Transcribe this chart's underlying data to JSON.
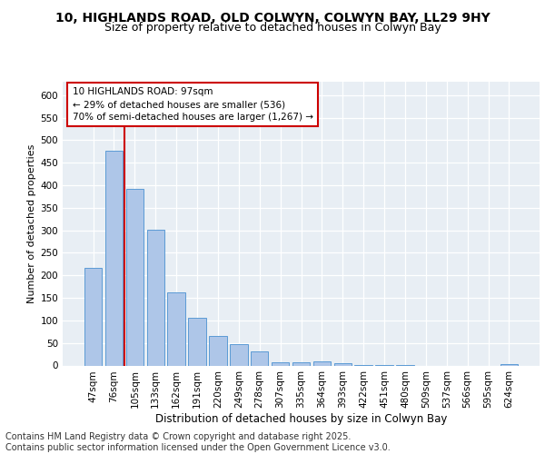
{
  "title": "10, HIGHLANDS ROAD, OLD COLWYN, COLWYN BAY, LL29 9HY",
  "subtitle": "Size of property relative to detached houses in Colwyn Bay",
  "xlabel": "Distribution of detached houses by size in Colwyn Bay",
  "ylabel": "Number of detached properties",
  "categories": [
    "47sqm",
    "76sqm",
    "105sqm",
    "133sqm",
    "162sqm",
    "191sqm",
    "220sqm",
    "249sqm",
    "278sqm",
    "307sqm",
    "335sqm",
    "364sqm",
    "393sqm",
    "422sqm",
    "451sqm",
    "480sqm",
    "509sqm",
    "537sqm",
    "566sqm",
    "595sqm",
    "624sqm"
  ],
  "values": [
    217,
    477,
    393,
    302,
    163,
    106,
    65,
    48,
    32,
    7,
    8,
    9,
    5,
    2,
    1,
    1,
    0,
    0,
    0,
    0,
    3
  ],
  "bar_color": "#aec6e8",
  "bar_edge_color": "#5b9bd5",
  "vline_color": "#cc0000",
  "annotation_text": "10 HIGHLANDS ROAD: 97sqm\n← 29% of detached houses are smaller (536)\n70% of semi-detached houses are larger (1,267) →",
  "annotation_box_color": "#ffffff",
  "annotation_box_edge": "#cc0000",
  "ylim": [
    0,
    630
  ],
  "yticks": [
    0,
    50,
    100,
    150,
    200,
    250,
    300,
    350,
    400,
    450,
    500,
    550,
    600
  ],
  "bg_color": "#e8eef4",
  "footer": "Contains HM Land Registry data © Crown copyright and database right 2025.\nContains public sector information licensed under the Open Government Licence v3.0.",
  "title_fontsize": 10,
  "subtitle_fontsize": 9,
  "footer_fontsize": 7,
  "ylabel_fontsize": 8,
  "xlabel_fontsize": 8.5,
  "tick_fontsize": 7.5,
  "annot_fontsize": 7.5
}
